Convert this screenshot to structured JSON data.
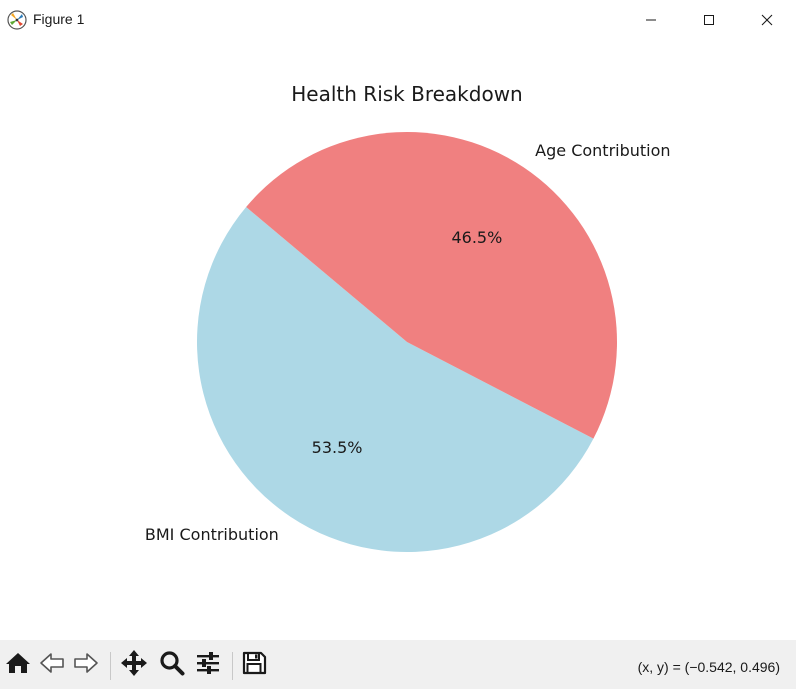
{
  "window": {
    "title": "Figure 1",
    "icons": {
      "app": "matplotlib-logo-icon",
      "minimize": "minimize-icon",
      "maximize": "maximize-icon",
      "close": "close-icon"
    }
  },
  "chart_data": {
    "type": "pie",
    "title": "Health Risk Breakdown",
    "labels": [
      "BMI Contribution",
      "Age Contribution"
    ],
    "values": [
      53.5,
      46.5
    ],
    "autopct": [
      "53.5%",
      "46.5%"
    ],
    "colors": [
      "#add8e6",
      "#f08080"
    ],
    "start_angle_deg": 140,
    "legend": "none"
  },
  "toolbar": {
    "buttons": [
      {
        "name": "home-button",
        "icon": "home-icon"
      },
      {
        "name": "back-button",
        "icon": "arrow-left-icon"
      },
      {
        "name": "forward-button",
        "icon": "arrow-right-icon"
      },
      {
        "name": "pan-button",
        "icon": "move-icon"
      },
      {
        "name": "zoom-button",
        "icon": "magnifier-icon"
      },
      {
        "name": "configure-subplots-button",
        "icon": "sliders-icon"
      },
      {
        "name": "save-button",
        "icon": "floppy-disk-icon"
      }
    ],
    "coords": "(x, y) = (−0.542, 0.496)"
  }
}
